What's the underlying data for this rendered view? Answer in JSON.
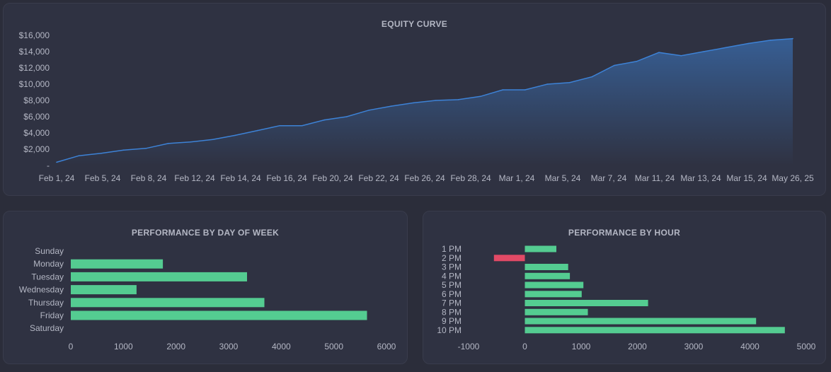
{
  "colors": {
    "line": "#3d82d6",
    "positive": "#54cc91",
    "negative": "#e24a66",
    "text": "#b4b7c4"
  },
  "chart_data": [
    {
      "type": "area",
      "title": "EQUITY CURVE",
      "y_ticks": [
        "-",
        "$2,000",
        "$4,000",
        "$6,000",
        "$8,000",
        "$10,000",
        "$12,000",
        "$14,000",
        "$16,000"
      ],
      "y_tick_values": [
        0,
        2000,
        4000,
        6000,
        8000,
        10000,
        12000,
        14000,
        16000
      ],
      "x_ticks": [
        "Feb 1, 24",
        "Feb 5, 24",
        "Feb 8, 24",
        "Feb 12, 24",
        "Feb 14, 24",
        "Feb 16, 24",
        "Feb 20, 24",
        "Feb 22, 24",
        "Feb 26, 24",
        "Feb 28, 24",
        "Mar 1, 24",
        "Mar 5, 24",
        "Mar 7, 24",
        "Mar 11, 24",
        "Mar 13, 24",
        "Mar 15, 24",
        "May 26, 25"
      ],
      "ylim": [
        0,
        16000
      ],
      "values": [
        400,
        1200,
        1500,
        1900,
        2100,
        2700,
        2900,
        3200,
        3700,
        4300,
        4900,
        4900,
        5600,
        6000,
        6800,
        7300,
        7700,
        8000,
        8100,
        8500,
        9300,
        9300,
        10000,
        10200,
        10900,
        12300,
        12800,
        13900,
        13500,
        14000,
        14500,
        15000,
        15400,
        15600
      ]
    },
    {
      "type": "bar",
      "orientation": "horizontal",
      "title": "PERFORMANCE BY DAY OF WEEK",
      "categories": [
        "Sunday",
        "Monday",
        "Tuesday",
        "Wednesday",
        "Thursday",
        "Friday",
        "Saturday"
      ],
      "values": [
        0,
        1750,
        3350,
        1250,
        3680,
        5630,
        0
      ],
      "x_ticks": [
        "0",
        "1000",
        "2000",
        "3000",
        "4000",
        "5000",
        "6000"
      ],
      "xlim": [
        0,
        6000
      ]
    },
    {
      "type": "bar",
      "orientation": "horizontal",
      "title": "PERFORMANCE BY HOUR",
      "categories": [
        "1 PM",
        "2 PM",
        "3 PM",
        "4 PM",
        "5 PM",
        "6 PM",
        "7 PM",
        "8 PM",
        "9 PM",
        "10 PM"
      ],
      "values": [
        560,
        -550,
        770,
        800,
        1040,
        1010,
        2190,
        1120,
        4110,
        4620
      ],
      "x_ticks": [
        "-1000",
        "0",
        "1000",
        "2000",
        "3000",
        "4000",
        "5000"
      ],
      "xlim": [
        -1000,
        5000
      ]
    }
  ]
}
